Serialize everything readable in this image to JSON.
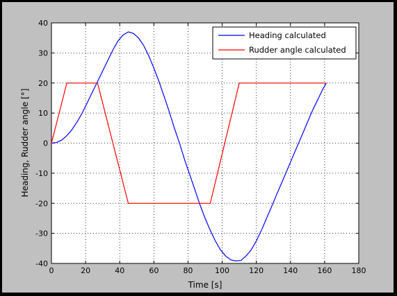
{
  "chart_data": {
    "type": "line",
    "title": "",
    "xlabel": "Time [s]",
    "ylabel": "Heading, Rudder angle [°]",
    "xlim": [
      0,
      180
    ],
    "ylim": [
      -40,
      40
    ],
    "xticks": [
      0,
      20,
      40,
      60,
      80,
      100,
      120,
      140,
      160,
      180
    ],
    "yticks": [
      -40,
      -30,
      -20,
      -10,
      0,
      10,
      20,
      30,
      40
    ],
    "grid": true,
    "grid_style": "dotted",
    "legend_position": "top-right",
    "series": [
      {
        "name": "Heading calculated",
        "color": "#0000ff",
        "x": [
          0,
          3,
          6,
          9,
          12,
          15,
          18,
          21,
          24,
          27,
          30,
          33,
          36,
          39,
          42,
          45,
          48,
          51,
          54,
          57,
          60,
          63,
          66,
          69,
          72,
          75,
          78,
          81,
          84,
          87,
          90,
          93,
          96,
          99,
          102,
          105,
          108,
          111,
          114,
          117,
          120,
          123,
          126,
          129,
          132,
          135,
          138,
          141,
          144,
          147,
          150,
          153,
          156,
          159,
          161
        ],
        "y": [
          0,
          0.2,
          1,
          2.5,
          4.5,
          7,
          10,
          13.5,
          17,
          20.5,
          24,
          27.5,
          31,
          34,
          36,
          37,
          36.5,
          35,
          32.5,
          29,
          25,
          20.5,
          15.5,
          10.5,
          5,
          0,
          -5.5,
          -10.5,
          -15.5,
          -20.5,
          -25,
          -29,
          -32.5,
          -35.5,
          -37.5,
          -38.8,
          -39.2,
          -39,
          -37.5,
          -35.5,
          -32.5,
          -29,
          -25,
          -21,
          -17,
          -13,
          -9,
          -5,
          -1,
          3,
          7,
          11,
          14.5,
          18,
          20
        ]
      },
      {
        "name": "Rudder angle calculated",
        "color": "#ff0000",
        "x": [
          0,
          9,
          27,
          45,
          93,
          110,
          161
        ],
        "y": [
          0,
          20,
          20,
          -20,
          -20,
          20,
          20
        ]
      }
    ]
  }
}
